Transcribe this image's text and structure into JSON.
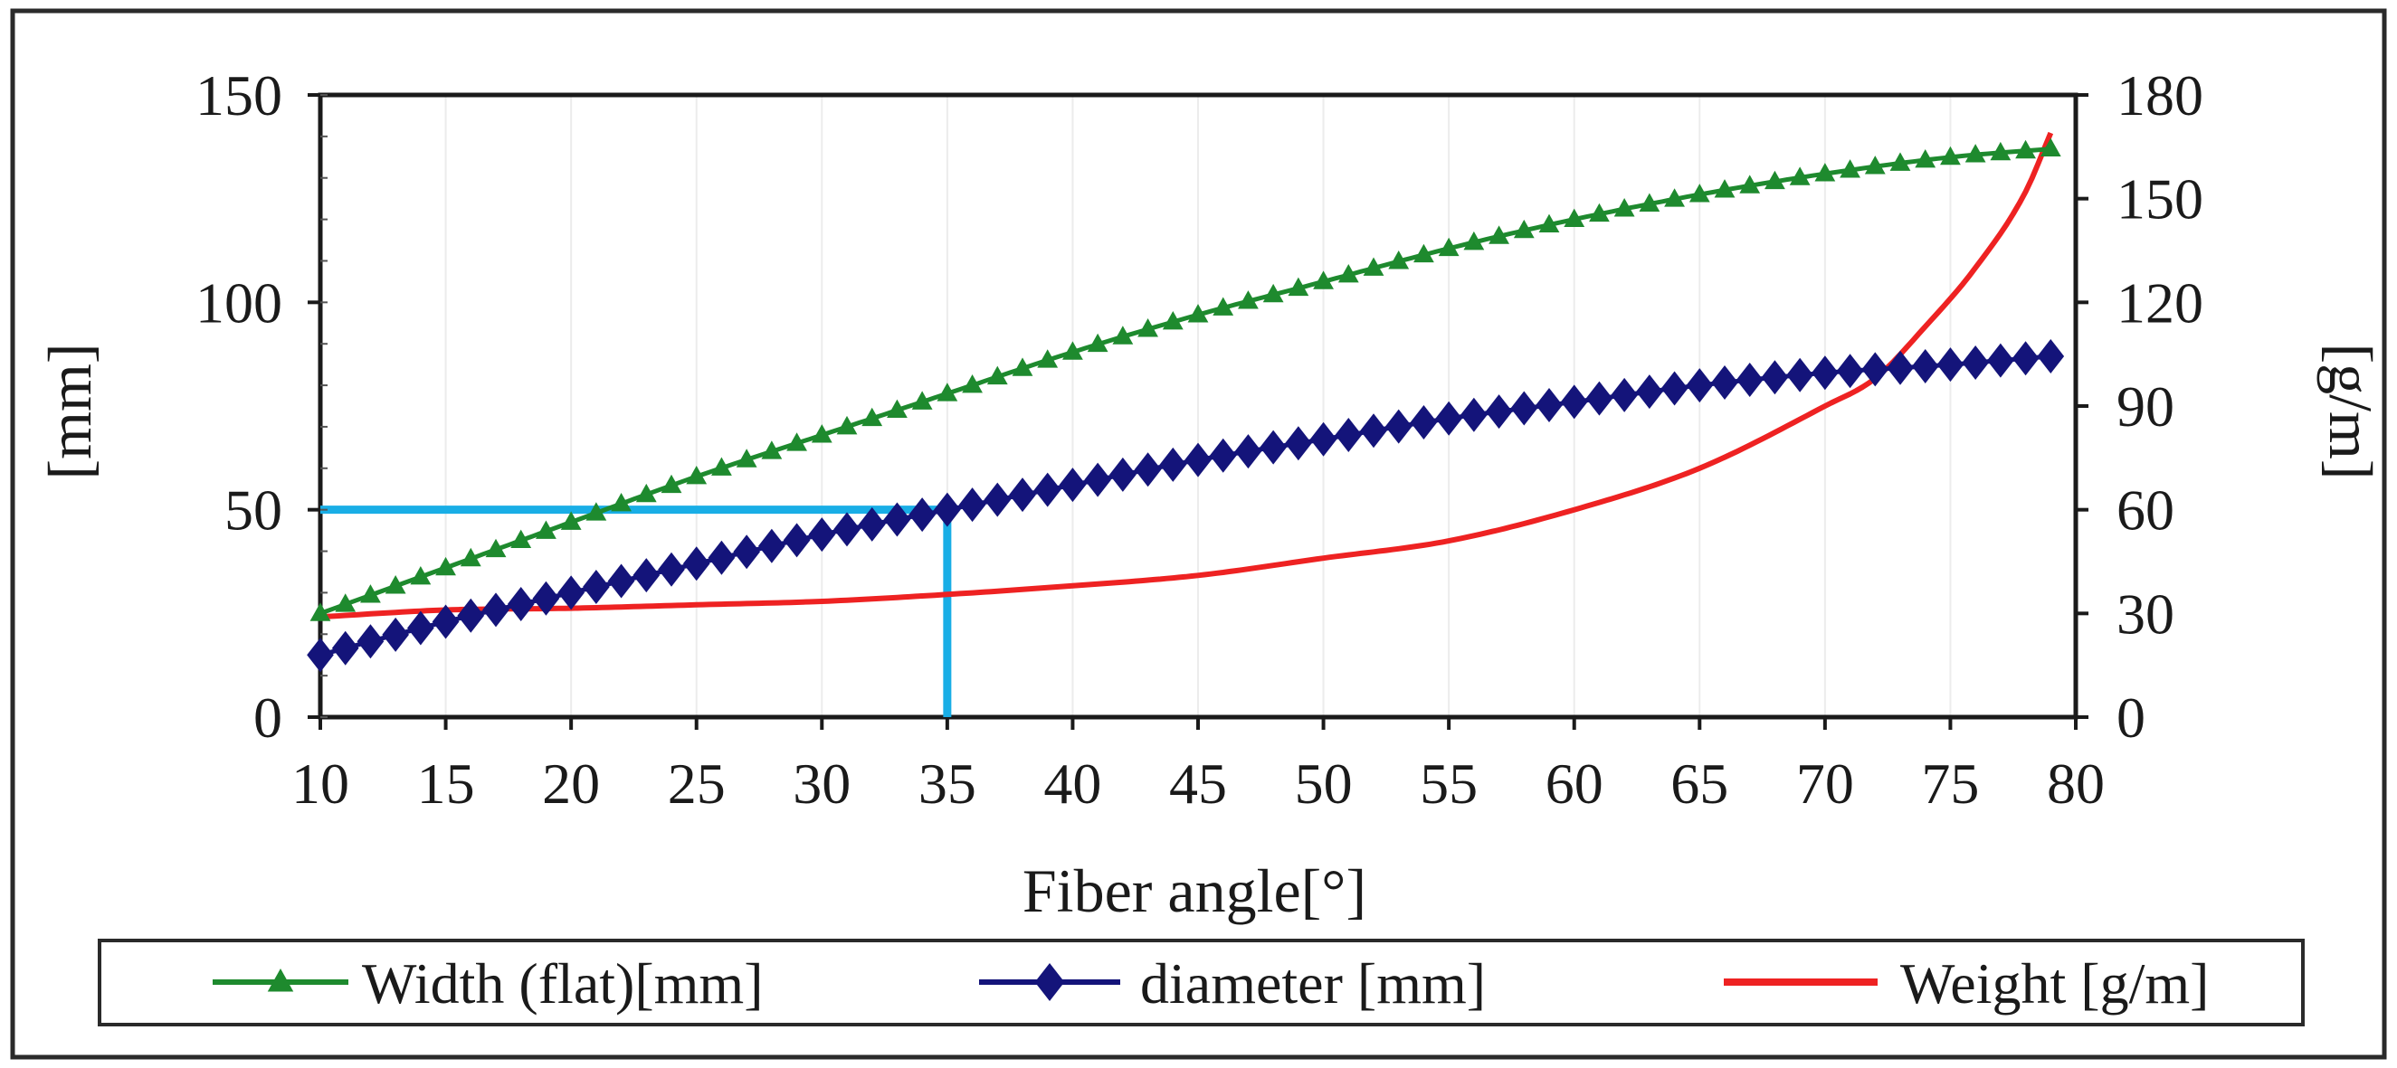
{
  "chart_data": {
    "type": "line",
    "xlabel": "Fiber angle[°]",
    "ylabel_left": "[mm]",
    "ylabel_right": "[g/m]",
    "xlim": [
      10,
      80
    ],
    "ylim_left": [
      0,
      150
    ],
    "ylim_right": [
      0,
      180
    ],
    "x_ticks": [
      "10",
      "15",
      "20",
      "25",
      "30",
      "35",
      "40",
      "45",
      "50",
      "55",
      "60",
      "65",
      "70",
      "75",
      "80"
    ],
    "y_left_ticks": [
      "0",
      "50",
      "100",
      "150"
    ],
    "y_right_ticks": [
      "0",
      "30",
      "60",
      "90",
      "120",
      "150",
      "180"
    ],
    "legend_position": "bottom",
    "series": [
      {
        "name": "Width (flat)[mm]",
        "axis": "left",
        "color": "#1e8a2e",
        "marker": "triangle",
        "x": [
          10,
          15,
          20,
          25,
          30,
          35,
          40,
          45,
          50,
          55,
          60,
          65,
          70,
          75,
          79
        ],
        "values": [
          25,
          36,
          47,
          58,
          68,
          78,
          88,
          97,
          105,
          113,
          120,
          126,
          131,
          135,
          137
        ]
      },
      {
        "name": "diameter [mm]",
        "axis": "left",
        "color": "#14147a",
        "marker": "diamond",
        "x": [
          10,
          15,
          20,
          25,
          30,
          35,
          40,
          45,
          50,
          55,
          60,
          65,
          70,
          75,
          79
        ],
        "values": [
          15,
          23,
          30,
          37,
          44,
          50,
          56,
          62,
          67,
          72,
          76,
          80,
          83,
          85,
          87
        ]
      },
      {
        "name": "Weight [g/m]",
        "axis": "right",
        "color": "#ee2222",
        "marker": "none",
        "x": [
          10,
          15,
          20,
          25,
          30,
          35,
          40,
          45,
          50,
          55,
          60,
          65,
          70,
          72,
          74,
          76,
          78,
          79
        ],
        "values": [
          29,
          31,
          31.5,
          32.5,
          33.5,
          35.5,
          38,
          41,
          46,
          51,
          60,
          72,
          90,
          98,
          113,
          130,
          152,
          169
        ]
      }
    ],
    "annotation": {
      "color": "#19aee6",
      "x": 35,
      "y": 50,
      "description_axis": "left"
    }
  }
}
